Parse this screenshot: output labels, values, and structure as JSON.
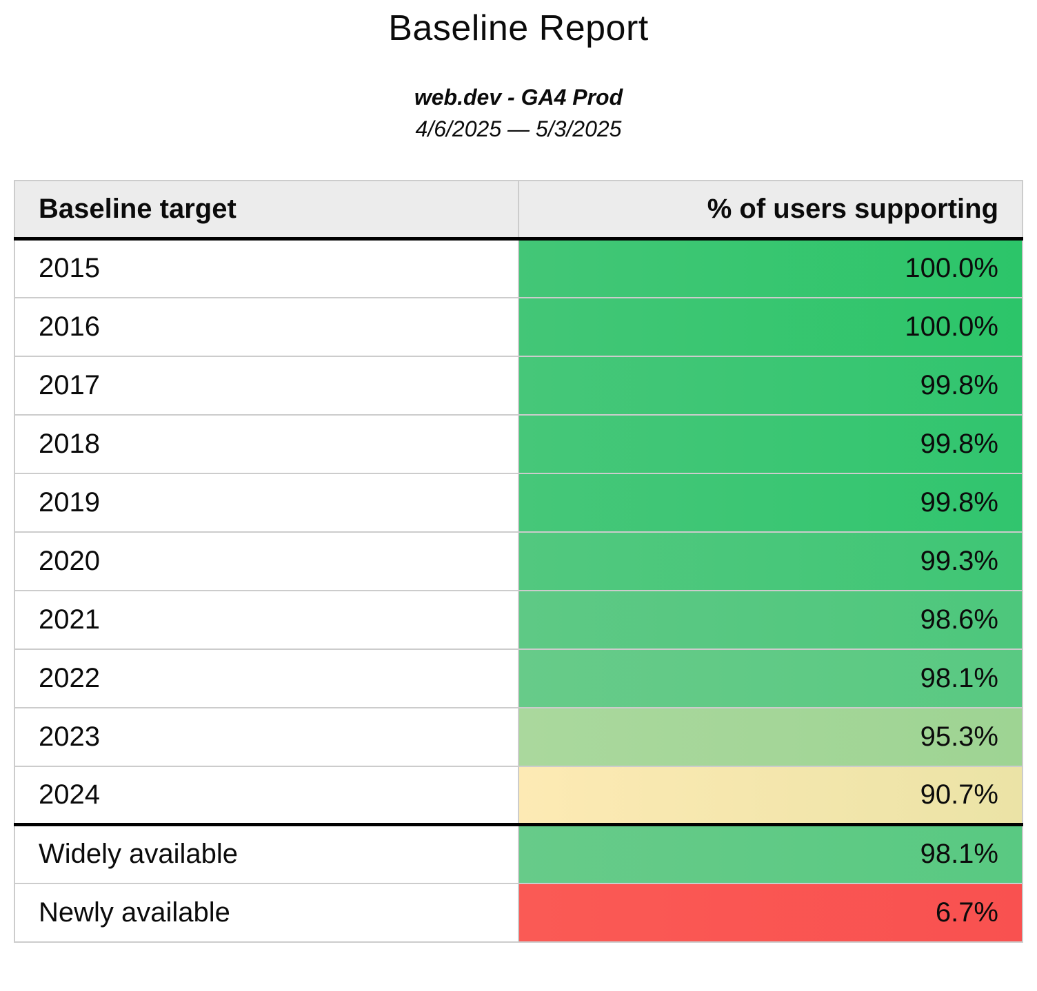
{
  "page": {
    "title": "Baseline Report",
    "subtitle": "web.dev - GA4 Prod",
    "date_range": "4/6/2025 — 5/3/2025"
  },
  "table": {
    "columns": [
      {
        "label": "Baseline target"
      },
      {
        "label": "% of users supporting"
      }
    ],
    "rows": [
      {
        "target": "2015",
        "value": "100.0%",
        "color_left": "#43c677",
        "color_right": "#2cc569",
        "divider_above": false
      },
      {
        "target": "2016",
        "value": "100.0%",
        "color_left": "#43c677",
        "color_right": "#2cc569",
        "divider_above": false
      },
      {
        "target": "2017",
        "value": "99.8%",
        "color_left": "#46c779",
        "color_right": "#31c56e",
        "divider_above": false
      },
      {
        "target": "2018",
        "value": "99.8%",
        "color_left": "#46c779",
        "color_right": "#31c56e",
        "divider_above": false
      },
      {
        "target": "2019",
        "value": "99.8%",
        "color_left": "#46c779",
        "color_right": "#31c56e",
        "divider_above": false
      },
      {
        "target": "2020",
        "value": "99.3%",
        "color_left": "#52c87f",
        "color_right": "#3fc675",
        "divider_above": false
      },
      {
        "target": "2021",
        "value": "98.6%",
        "color_left": "#5ec985",
        "color_right": "#4dc77c",
        "divider_above": false
      },
      {
        "target": "2022",
        "value": "98.1%",
        "color_left": "#67cb89",
        "color_right": "#59c982",
        "divider_above": false
      },
      {
        "target": "2023",
        "value": "95.3%",
        "color_left": "#aad89d",
        "color_right": "#9ed493",
        "divider_above": false
      },
      {
        "target": "2024",
        "value": "90.7%",
        "color_left": "#fdeab4",
        "color_right": "#ebe3a6",
        "divider_above": false
      },
      {
        "target": "Widely available",
        "value": "98.1%",
        "color_left": "#67cb89",
        "color_right": "#59c982",
        "divider_above": true
      },
      {
        "target": "Newly available",
        "value": "6.7%",
        "color_left": "#fa5a55",
        "color_right": "#f95150",
        "divider_above": false
      }
    ],
    "style": {
      "header_bg": "#ececec",
      "grid_border": "#cccccc",
      "section_border": "#000000"
    }
  }
}
